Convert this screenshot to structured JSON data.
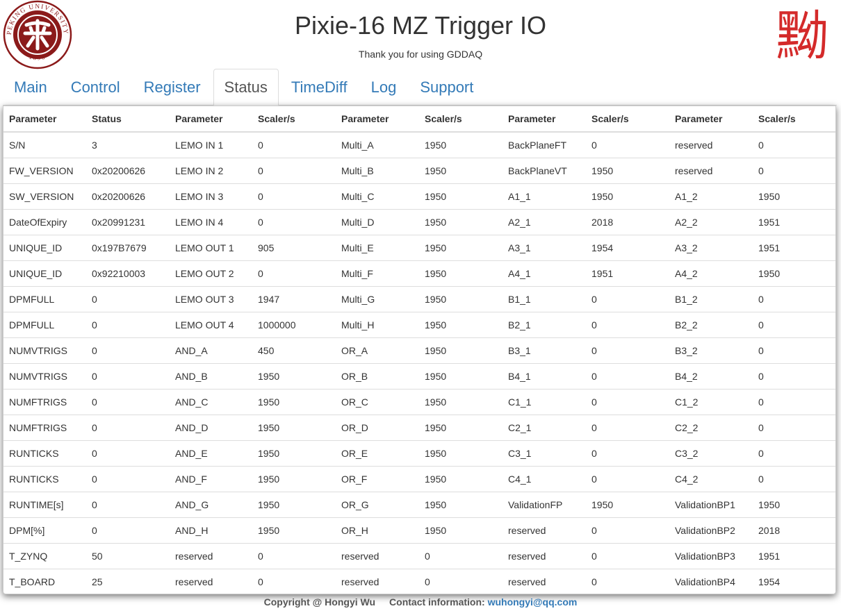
{
  "header": {
    "title": "Pixie-16 MZ Trigger IO",
    "subtitle": "Thank you for using GDDAQ",
    "logo_left": {
      "ring_top": "PEKING UNIVERSITY",
      "ring_bottom": "1898",
      "color": "#8b1a1a"
    },
    "logo_right": {
      "glyph": "黝",
      "color": "#d42a2a"
    }
  },
  "tabs": [
    {
      "label": "Main",
      "active": false
    },
    {
      "label": "Control",
      "active": false
    },
    {
      "label": "Register",
      "active": false
    },
    {
      "label": "Status",
      "active": true
    },
    {
      "label": "TimeDiff",
      "active": false
    },
    {
      "label": "Log",
      "active": false
    },
    {
      "label": "Support",
      "active": false
    }
  ],
  "table": {
    "headers": [
      "Parameter",
      "Status",
      "Parameter",
      "Scaler/s",
      "Parameter",
      "Scaler/s",
      "Parameter",
      "Scaler/s",
      "Parameter",
      "Scaler/s"
    ],
    "rows": [
      [
        "S/N",
        "3",
        "LEMO IN 1",
        "0",
        "Multi_A",
        "1950",
        "BackPlaneFT",
        "0",
        "reserved",
        "0"
      ],
      [
        "FW_VERSION",
        "0x20200626",
        "LEMO IN 2",
        "0",
        "Multi_B",
        "1950",
        "BackPlaneVT",
        "1950",
        "reserved",
        "0"
      ],
      [
        "SW_VERSION",
        "0x20200626",
        "LEMO IN 3",
        "0",
        "Multi_C",
        "1950",
        "A1_1",
        "1950",
        "A1_2",
        "1950"
      ],
      [
        "DateOfExpiry",
        "0x20991231",
        "LEMO IN 4",
        "0",
        "Multi_D",
        "1950",
        "A2_1",
        "2018",
        "A2_2",
        "1951"
      ],
      [
        "UNIQUE_ID",
        "0x197B7679",
        "LEMO OUT 1",
        "905",
        "Multi_E",
        "1950",
        "A3_1",
        "1954",
        "A3_2",
        "1951"
      ],
      [
        "UNIQUE_ID",
        "0x92210003",
        "LEMO OUT 2",
        "0",
        "Multi_F",
        "1950",
        "A4_1",
        "1951",
        "A4_2",
        "1950"
      ],
      [
        "DPMFULL",
        "0",
        "LEMO OUT 3",
        "1947",
        "Multi_G",
        "1950",
        "B1_1",
        "0",
        "B1_2",
        "0"
      ],
      [
        "DPMFULL",
        "0",
        "LEMO OUT 4",
        "1000000",
        "Multi_H",
        "1950",
        "B2_1",
        "0",
        "B2_2",
        "0"
      ],
      [
        "NUMVTRIGS",
        "0",
        "AND_A",
        "450",
        "OR_A",
        "1950",
        "B3_1",
        "0",
        "B3_2",
        "0"
      ],
      [
        "NUMVTRIGS",
        "0",
        "AND_B",
        "1950",
        "OR_B",
        "1950",
        "B4_1",
        "0",
        "B4_2",
        "0"
      ],
      [
        "NUMFTRIGS",
        "0",
        "AND_C",
        "1950",
        "OR_C",
        "1950",
        "C1_1",
        "0",
        "C1_2",
        "0"
      ],
      [
        "NUMFTRIGS",
        "0",
        "AND_D",
        "1950",
        "OR_D",
        "1950",
        "C2_1",
        "0",
        "C2_2",
        "0"
      ],
      [
        "RUNTICKS",
        "0",
        "AND_E",
        "1950",
        "OR_E",
        "1950",
        "C3_1",
        "0",
        "C3_2",
        "0"
      ],
      [
        "RUNTICKS",
        "0",
        "AND_F",
        "1950",
        "OR_F",
        "1950",
        "C4_1",
        "0",
        "C4_2",
        "0"
      ],
      [
        "RUNTIME[s]",
        "0",
        "AND_G",
        "1950",
        "OR_G",
        "1950",
        "ValidationFP",
        "1950",
        "ValidationBP1",
        "1950"
      ],
      [
        "DPM[%]",
        "0",
        "AND_H",
        "1950",
        "OR_H",
        "1950",
        "reserved",
        "0",
        "ValidationBP2",
        "2018"
      ],
      [
        "T_ZYNQ",
        "50",
        "reserved",
        "0",
        "reserved",
        "0",
        "reserved",
        "0",
        "ValidationBP3",
        "1951"
      ],
      [
        "T_BOARD",
        "25",
        "reserved",
        "0",
        "reserved",
        "0",
        "reserved",
        "0",
        "ValidationBP4",
        "1954"
      ]
    ]
  },
  "footer": {
    "copyright": "Copyright @ Hongyi Wu",
    "contact_label": "Contact information:",
    "contact_email": "wuhongyi@qq.com"
  }
}
